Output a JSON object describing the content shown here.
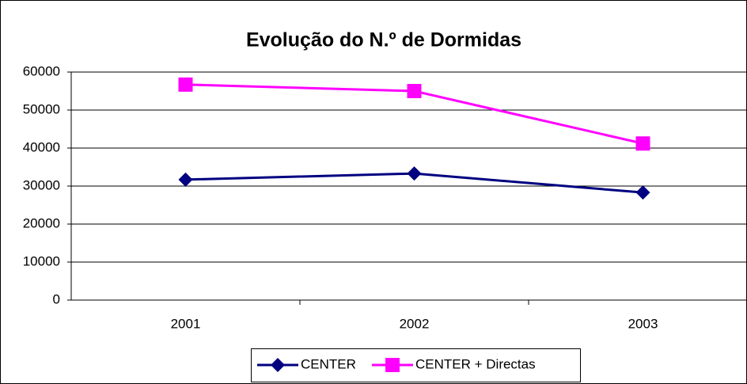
{
  "chart_data": {
    "type": "line",
    "title": "Evolução do N.º de Dormidas",
    "categories": [
      "2001",
      "2002",
      "2003"
    ],
    "series": [
      {
        "name": "CENTER",
        "color": "#000080",
        "marker": "diamond",
        "values": [
          31700,
          33300,
          28300
        ]
      },
      {
        "name": "CENTER + Directas",
        "color": "#ff00ff",
        "marker": "square",
        "values": [
          56700,
          55000,
          41200
        ]
      }
    ],
    "ylim": [
      0,
      60000
    ],
    "yticks": [
      0,
      10000,
      20000,
      30000,
      40000,
      50000,
      60000
    ],
    "grid": true,
    "legend": "bottom"
  }
}
